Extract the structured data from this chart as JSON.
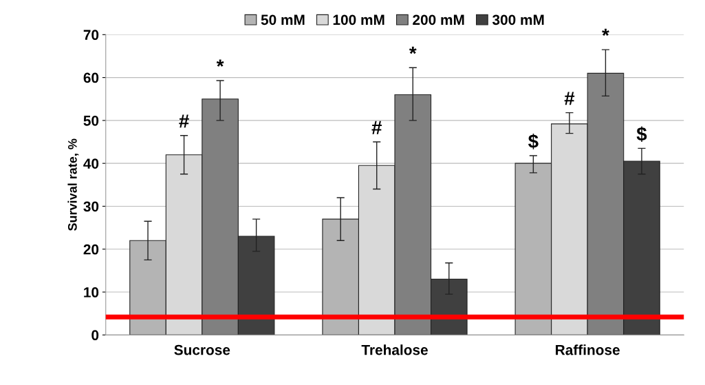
{
  "chart_data": {
    "type": "bar",
    "ylabel": "Survival rate, %",
    "categories": [
      "Sucrose",
      "Trehalose",
      "Raffinose"
    ],
    "series": [
      {
        "name": "50 mM",
        "color": "#b4b4b4",
        "values": [
          22,
          27,
          40
        ],
        "value_labels": [
          null,
          null,
          "$"
        ],
        "errors": [
          [
            17.5,
            26.5
          ],
          [
            22,
            32
          ],
          [
            37.8,
            41.8
          ]
        ]
      },
      {
        "name": "100 mM",
        "color": "#d9d9d9",
        "values": [
          42,
          39.5,
          49.2
        ],
        "value_labels": [
          "#",
          "#",
          "#"
        ],
        "errors": [
          [
            37.5,
            46.5
          ],
          [
            34,
            45
          ],
          [
            47,
            51.8
          ]
        ]
      },
      {
        "name": "200 mM",
        "color": "#808080",
        "values": [
          55,
          56,
          61
        ],
        "value_labels": [
          "*",
          "*",
          "*"
        ],
        "errors": [
          [
            50,
            59.3
          ],
          [
            50,
            62.3
          ],
          [
            55.7,
            66.5
          ]
        ]
      },
      {
        "name": "300 mM",
        "color": "#404040",
        "values": [
          23,
          13,
          40.5
        ],
        "value_labels": [
          null,
          null,
          "$"
        ],
        "errors": [
          [
            19.5,
            27
          ],
          [
            9.5,
            16.8
          ],
          [
            37.5,
            43.5
          ]
        ]
      }
    ],
    "ylim": [
      0,
      70
    ],
    "yticks": [
      0,
      10,
      20,
      30,
      40,
      50,
      60,
      70
    ],
    "grid": "y",
    "legend": "top",
    "ref_lines": [
      {
        "axis": "y",
        "value": 4.2,
        "color": "#ff0000"
      }
    ]
  }
}
